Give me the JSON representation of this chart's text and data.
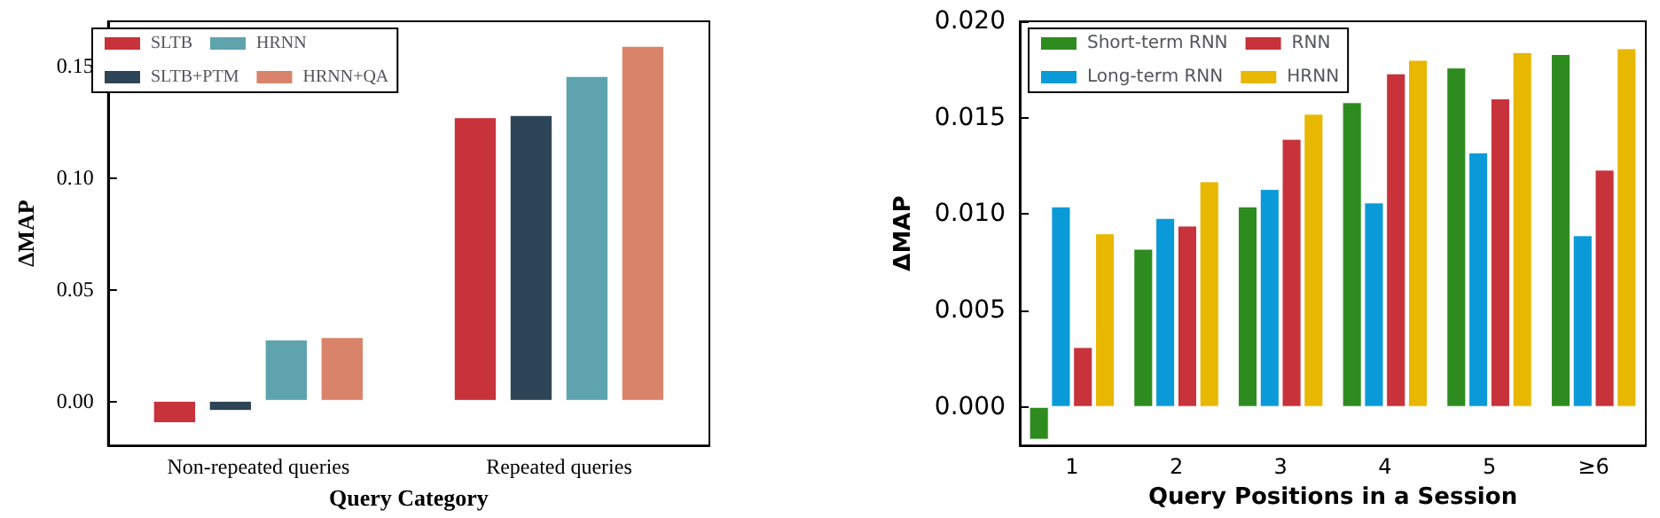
{
  "chart_data": [
    {
      "type": "bar",
      "xlabel": "Query Category",
      "ylabel": "ΔMAP",
      "categories": [
        "Non-repeated queries",
        "Repeated queries"
      ],
      "series": [
        {
          "name": "SLTB",
          "color": "#c8323a",
          "values": [
            -0.01,
            0.127
          ]
        },
        {
          "name": "SLTB+PTM",
          "color": "#2d4556",
          "values": [
            -0.0045,
            0.128
          ]
        },
        {
          "name": "HRNN",
          "color": "#5ea3ad",
          "values": [
            0.0275,
            0.1455
          ]
        },
        {
          "name": "HRNN+QA",
          "color": "#d9846a",
          "values": [
            0.0285,
            0.159
          ]
        }
      ],
      "ylim": [
        -0.02,
        0.17
      ],
      "yticks": [
        {
          "value": 0,
          "label": "0.00"
        },
        {
          "value": 0.05,
          "label": "0.05"
        },
        {
          "value": 0.1,
          "label": "0.10"
        },
        {
          "value": 0.15,
          "label": "0.15"
        }
      ],
      "legend": "top left",
      "grid": false
    },
    {
      "type": "bar",
      "xlabel": "Query Positions in a Session",
      "ylabel": "ΔMAP",
      "categories": [
        "1",
        "2",
        "3",
        "4",
        "5",
        "≥6"
      ],
      "series": [
        {
          "name": "Short-term RNN",
          "color": "#2e8b1f",
          "values": [
            -0.0017,
            0.0082,
            0.0104,
            0.0158,
            0.0176,
            0.0183
          ]
        },
        {
          "name": "Long-term RNN",
          "color": "#0a9ad8",
          "values": [
            0.0104,
            0.0098,
            0.0113,
            0.0106,
            0.0132,
            0.0089
          ]
        },
        {
          "name": "RNN",
          "color": "#c8323a",
          "values": [
            0.0031,
            0.0094,
            0.0139,
            0.0173,
            0.016,
            0.0123
          ]
        },
        {
          "name": "HRNN",
          "color": "#e8b700",
          "values": [
            0.009,
            0.0117,
            0.0152,
            0.018,
            0.0184,
            0.0186
          ]
        }
      ],
      "ylim": [
        -0.002,
        0.02
      ],
      "yticks": [
        {
          "value": 0,
          "label": "0.000"
        },
        {
          "value": 0.005,
          "label": "0.005"
        },
        {
          "value": 0.01,
          "label": "0.010"
        },
        {
          "value": 0.015,
          "label": "0.015"
        },
        {
          "value": 0.02,
          "label": "0.020"
        }
      ],
      "legend": "top left",
      "grid": false
    }
  ]
}
